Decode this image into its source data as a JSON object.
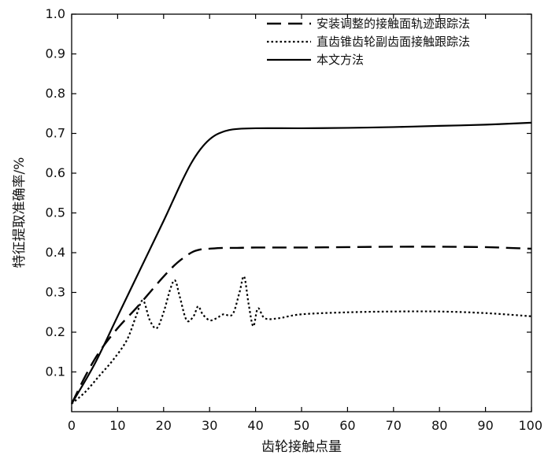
{
  "chart_data": {
    "type": "line",
    "title": "",
    "xlabel": "齿轮接触点量",
    "ylabel": "特征提取准确率/%",
    "xlim": [
      0,
      100
    ],
    "ylim": [
      0,
      1.0
    ],
    "x_ticks": [
      "0",
      "10",
      "20",
      "30",
      "40",
      "50",
      "60",
      "70",
      "80",
      "90",
      "100"
    ],
    "y_ticks": [
      "0.1",
      "0.2",
      "0.3",
      "0.4",
      "0.5",
      "0.6",
      "0.7",
      "0.8",
      "0.9",
      "1.0"
    ],
    "grid": false,
    "legend_position": "top-right",
    "series": [
      {
        "name": "安装调整的接触面轨迹跟踪法",
        "style": "dashed",
        "x": [
          0,
          3,
          6,
          10,
          14,
          17,
          20,
          23,
          26,
          28,
          30,
          33,
          36,
          40,
          50,
          60,
          70,
          80,
          90,
          95,
          100
        ],
        "y": [
          0.02,
          0.09,
          0.15,
          0.21,
          0.26,
          0.3,
          0.34,
          0.375,
          0.4,
          0.408,
          0.41,
          0.412,
          0.412,
          0.413,
          0.413,
          0.414,
          0.415,
          0.415,
          0.414,
          0.412,
          0.41
        ]
      },
      {
        "name": "直齿锥齿轮副齿面接触跟踪法",
        "style": "dotted",
        "x": [
          0,
          3,
          6,
          9,
          12,
          14,
          15.5,
          17,
          18.5,
          20,
          21.5,
          22.5,
          23.5,
          25,
          26.5,
          27.5,
          28.5,
          30,
          31.5,
          33,
          35,
          36.5,
          37.5,
          38.5,
          39.5,
          40.5,
          42,
          45,
          50,
          60,
          70,
          80,
          90,
          100
        ],
        "y": [
          0.02,
          0.05,
          0.09,
          0.13,
          0.18,
          0.24,
          0.28,
          0.23,
          0.21,
          0.25,
          0.31,
          0.33,
          0.29,
          0.23,
          0.24,
          0.265,
          0.245,
          0.23,
          0.235,
          0.245,
          0.245,
          0.3,
          0.34,
          0.27,
          0.215,
          0.26,
          0.235,
          0.235,
          0.245,
          0.25,
          0.252,
          0.252,
          0.248,
          0.24
        ]
      },
      {
        "name": "本文方法",
        "style": "solid",
        "x": [
          0,
          5,
          10,
          15,
          20,
          22,
          24,
          26,
          28,
          30,
          32,
          35,
          40,
          50,
          60,
          70,
          80,
          90,
          100
        ],
        "y": [
          0.02,
          0.12,
          0.24,
          0.36,
          0.48,
          0.53,
          0.58,
          0.625,
          0.66,
          0.685,
          0.7,
          0.71,
          0.713,
          0.713,
          0.714,
          0.716,
          0.719,
          0.722,
          0.727
        ]
      }
    ]
  }
}
